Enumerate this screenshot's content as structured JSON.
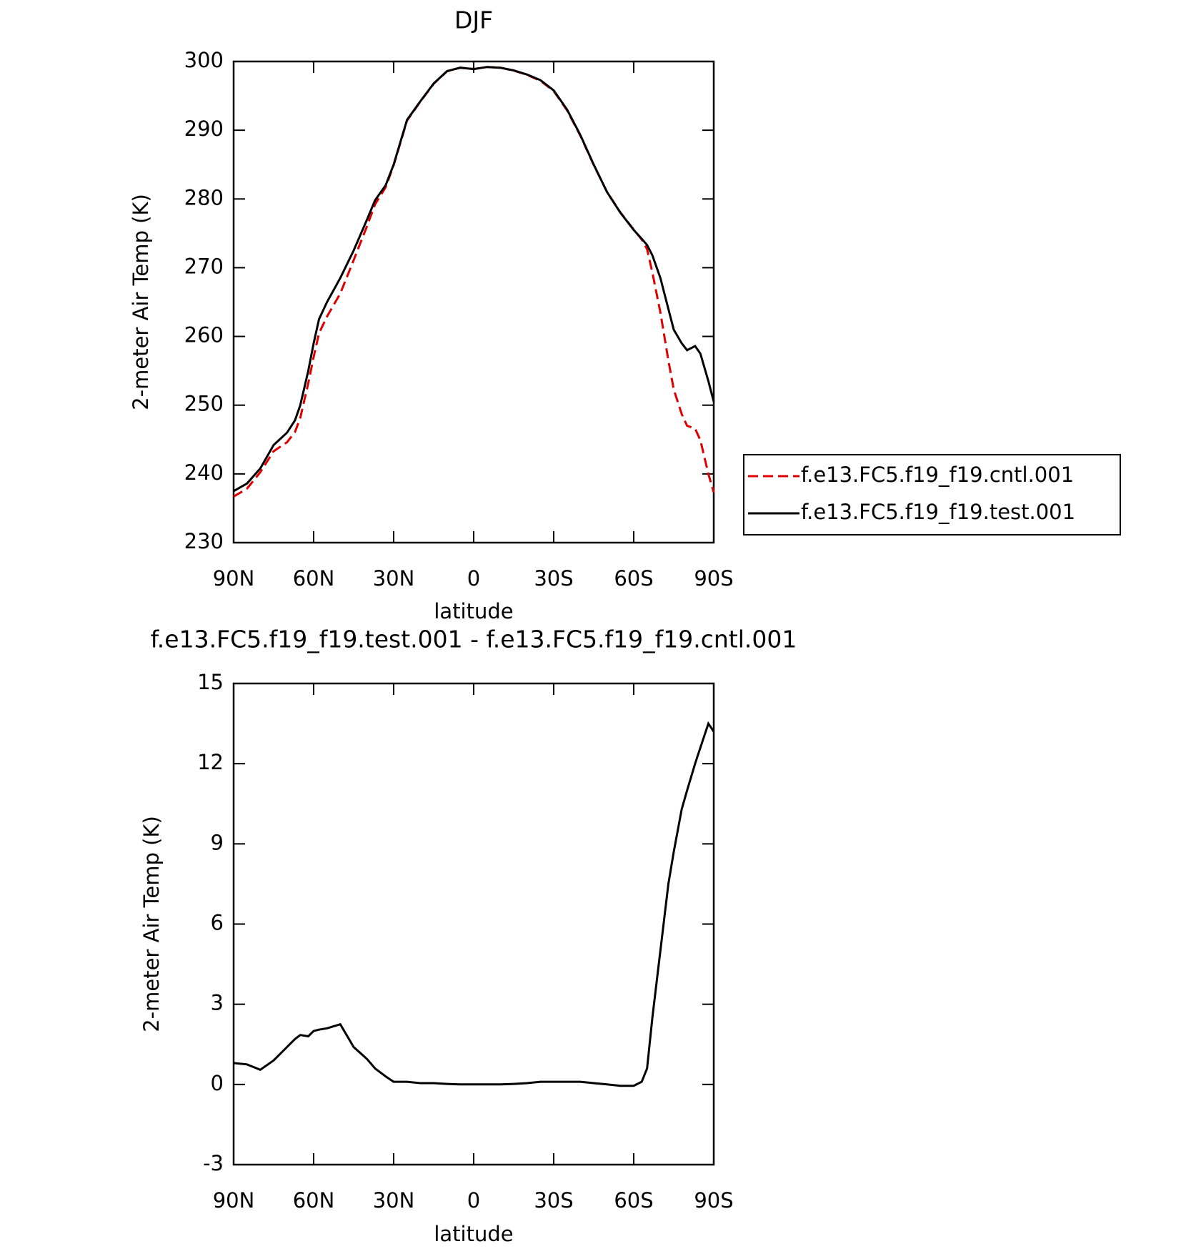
{
  "chart_data": [
    {
      "type": "line",
      "title": "DJF",
      "xlabel": "latitude",
      "ylabel": "2-meter Air Temp (K)",
      "x": [
        90,
        85,
        80,
        75,
        70,
        67,
        65,
        62,
        60,
        58,
        55,
        50,
        45,
        40,
        37,
        33,
        30,
        25,
        20,
        15,
        10,
        5,
        0,
        -5,
        -10,
        -15,
        -20,
        -25,
        -30,
        -35,
        -40,
        -45,
        -50,
        -55,
        -60,
        -63,
        -65,
        -67,
        -70,
        -73,
        -75,
        -78,
        -80,
        -83,
        -85,
        -88,
        -90
      ],
      "series": [
        {
          "name": "f.e13.FC5.f19_f19.cntl.001",
          "color": "#e00000",
          "linestyle": "dashed",
          "values": [
            236.7,
            237.85,
            240.25,
            243.3,
            244.6,
            246.1,
            248.15,
            253.2,
            257.0,
            260.45,
            262.9,
            266.25,
            271.1,
            276.05,
            279.2,
            281.7,
            284.9,
            291.4,
            294.15,
            296.75,
            298.58,
            299.1,
            298.9,
            299.2,
            299.1,
            298.68,
            298.05,
            297.2,
            295.7,
            292.9,
            289.2,
            284.95,
            281,
            278.05,
            275.55,
            274.1,
            272.7,
            269.3,
            263.5,
            256.5,
            252.3,
            248.7,
            247,
            246.6,
            244.9,
            240,
            237.3
          ]
        },
        {
          "name": "f.e13.FC5.f19_f19.test.001",
          "color": "#000000",
          "linestyle": "solid",
          "values": [
            237.5,
            238.6,
            240.8,
            244.2,
            246.0,
            247.8,
            250.0,
            255,
            259,
            262.5,
            265,
            268.5,
            272.5,
            277,
            279.8,
            282,
            285,
            291.5,
            294.2,
            296.8,
            298.6,
            299.1,
            298.9,
            299.2,
            299.1,
            298.7,
            298.1,
            297.3,
            295.8,
            293,
            289.3,
            285,
            281,
            278,
            275.5,
            274.2,
            273.3,
            271.8,
            268.5,
            264,
            261,
            259,
            258,
            258.6,
            257.5,
            253.5,
            250.5
          ]
        }
      ],
      "xlim": [
        90,
        -90
      ],
      "xticks": [
        {
          "value": 90,
          "label": "90N"
        },
        {
          "value": 60,
          "label": "60N"
        },
        {
          "value": 30,
          "label": "30N"
        },
        0,
        {
          "value": -30,
          "label": "30S"
        },
        {
          "value": -60,
          "label": "60S"
        },
        {
          "value": -90,
          "label": "90S"
        }
      ],
      "ylim": [
        230,
        300
      ],
      "yticks": [
        230,
        240,
        250,
        260,
        270,
        280,
        290,
        300
      ],
      "legend": "outside-right"
    },
    {
      "type": "line",
      "title": "f.e13.FC5.f19_f19.test.001 - f.e13.FC5.f19_f19.cntl.001",
      "xlabel": "latitude",
      "ylabel": "2-meter Air Temp (K)",
      "x": [
        90,
        85,
        80,
        75,
        70,
        67,
        65,
        62,
        60,
        58,
        55,
        50,
        45,
        40,
        37,
        33,
        30,
        25,
        20,
        15,
        10,
        5,
        0,
        -5,
        -10,
        -15,
        -20,
        -25,
        -30,
        -35,
        -40,
        -45,
        -50,
        -55,
        -60,
        -63,
        -65,
        -67,
        -70,
        -73,
        -75,
        -78,
        -80,
        -83,
        -85,
        -88,
        -90
      ],
      "values": [
        0.8,
        0.75,
        0.55,
        0.9,
        1.4,
        1.7,
        1.85,
        1.8,
        2.0,
        2.05,
        2.1,
        2.25,
        1.4,
        0.95,
        0.6,
        0.3,
        0.1,
        0.1,
        0.05,
        0.05,
        0.02,
        0,
        0,
        0,
        0,
        0.02,
        0.05,
        0.1,
        0.1,
        0.1,
        0.1,
        0.05,
        0,
        -0.05,
        -0.05,
        0.1,
        0.6,
        2.5,
        5.0,
        7.5,
        8.7,
        10.3,
        11.0,
        12.0,
        12.6,
        13.5,
        13.2
      ],
      "color": "#000000",
      "xlim": [
        90,
        -90
      ],
      "xticks": [
        {
          "value": 90,
          "label": "90N"
        },
        {
          "value": 60,
          "label": "60N"
        },
        {
          "value": 30,
          "label": "30N"
        },
        0,
        {
          "value": -30,
          "label": "30S"
        },
        {
          "value": -60,
          "label": "60S"
        },
        {
          "value": -90,
          "label": "90S"
        }
      ],
      "ylim": [
        -3,
        15
      ],
      "yticks": [
        -3,
        0,
        3,
        6,
        9,
        12,
        15
      ]
    }
  ]
}
